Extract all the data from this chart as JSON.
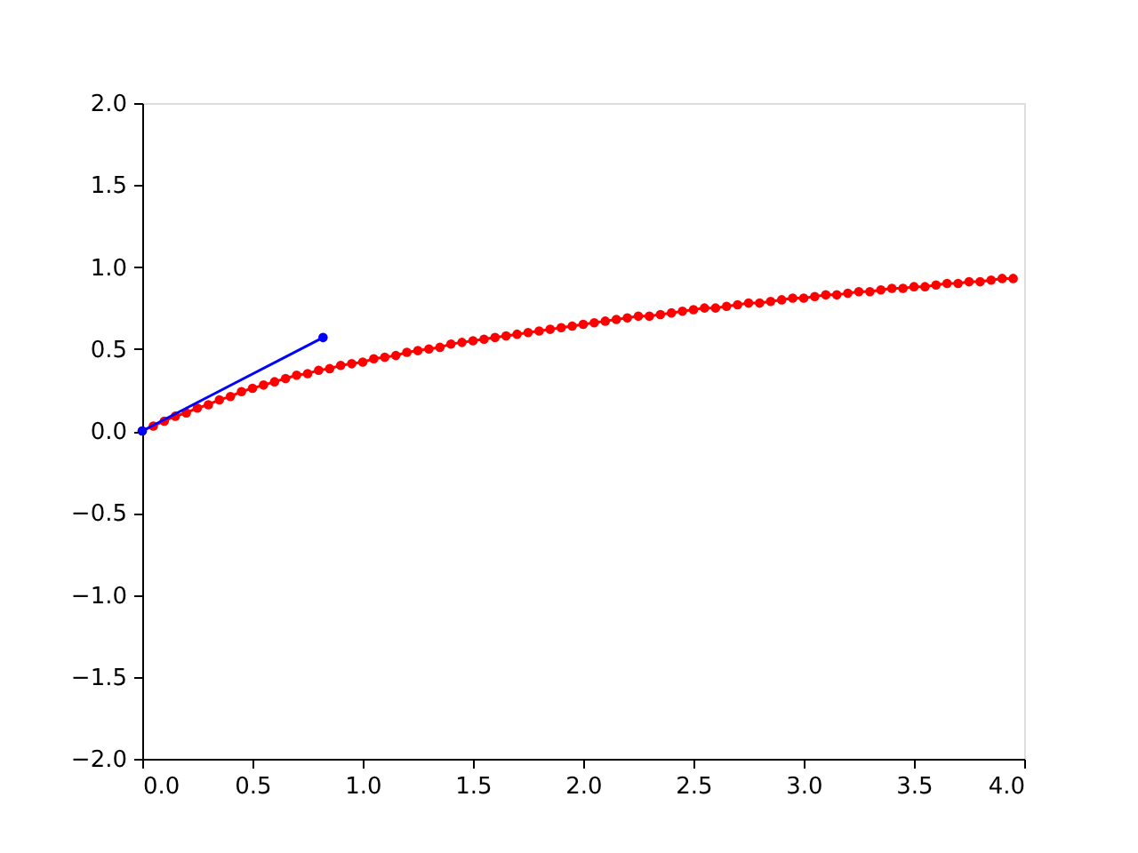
{
  "chart_data": {
    "type": "line",
    "marker": "circle",
    "line_style": "solid",
    "grid": false,
    "xlim": [
      0,
      4
    ],
    "ylim": [
      -2,
      2
    ],
    "xticks": [
      {
        "value": 0,
        "label": "0.0"
      },
      {
        "value": 0.5,
        "label": "0.5"
      },
      {
        "value": 1,
        "label": "1.0"
      },
      {
        "value": 1.5,
        "label": "1.5"
      },
      {
        "value": 2,
        "label": "2.0"
      },
      {
        "value": 2.5,
        "label": "2.5"
      },
      {
        "value": 3,
        "label": "3.0"
      },
      {
        "value": 3.5,
        "label": "3.5"
      },
      {
        "value": 4,
        "label": "4.0"
      }
    ],
    "yticks": [
      {
        "value": -2,
        "label": "−2.0"
      },
      {
        "value": -1.5,
        "label": "−1.5"
      },
      {
        "value": -1,
        "label": "−1.0"
      },
      {
        "value": -0.5,
        "label": "−0.5"
      },
      {
        "value": 0,
        "label": "0.0"
      },
      {
        "value": 0.5,
        "label": "0.5"
      },
      {
        "value": 1,
        "label": "1.0"
      },
      {
        "value": 1.5,
        "label": "1.5"
      },
      {
        "value": 2,
        "label": "2.0"
      }
    ],
    "series": [
      {
        "color": "#ff0000",
        "x": [
          0,
          0.05,
          0.1,
          0.15,
          0.2,
          0.25,
          0.3,
          0.35,
          0.4,
          0.45,
          0.5,
          0.55,
          0.6,
          0.65,
          0.7,
          0.75,
          0.8,
          0.85,
          0.9,
          0.95,
          1,
          1.05,
          1.1,
          1.15,
          1.2,
          1.25,
          1.3,
          1.35,
          1.4,
          1.45,
          1.5,
          1.55,
          1.6,
          1.65,
          1.7,
          1.75,
          1.8,
          1.85,
          1.9,
          1.95,
          2,
          2.05,
          2.1,
          2.15,
          2.2,
          2.25,
          2.3,
          2.35,
          2.4,
          2.45,
          2.5,
          2.55,
          2.6,
          2.65,
          2.7,
          2.75,
          2.8,
          2.85,
          2.9,
          2.95,
          3,
          3.05,
          3.1,
          3.15,
          3.2,
          3.25,
          3.3,
          3.35,
          3.4,
          3.45,
          3.5,
          3.55,
          3.6,
          3.65,
          3.7,
          3.75,
          3.8,
          3.85,
          3.9,
          3.95
        ],
        "values": [
          0,
          0.03,
          0.06,
          0.09,
          0.11,
          0.14,
          0.16,
          0.19,
          0.21,
          0.24,
          0.26,
          0.28,
          0.3,
          0.32,
          0.34,
          0.35,
          0.37,
          0.38,
          0.4,
          0.41,
          0.42,
          0.44,
          0.45,
          0.46,
          0.48,
          0.49,
          0.5,
          0.51,
          0.53,
          0.54,
          0.55,
          0.56,
          0.57,
          0.58,
          0.59,
          0.6,
          0.61,
          0.62,
          0.63,
          0.64,
          0.65,
          0.66,
          0.67,
          0.68,
          0.69,
          0.7,
          0.7,
          0.71,
          0.72,
          0.73,
          0.74,
          0.75,
          0.75,
          0.76,
          0.77,
          0.78,
          0.78,
          0.79,
          0.8,
          0.81,
          0.81,
          0.82,
          0.83,
          0.83,
          0.84,
          0.85,
          0.85,
          0.86,
          0.87,
          0.87,
          0.88,
          0.88,
          0.89,
          0.9,
          0.9,
          0.91,
          0.91,
          0.92,
          0.93,
          0.93
        ]
      },
      {
        "color": "#0000ff",
        "x": [
          0,
          0.82
        ],
        "values": [
          0,
          0.57
        ]
      }
    ]
  }
}
